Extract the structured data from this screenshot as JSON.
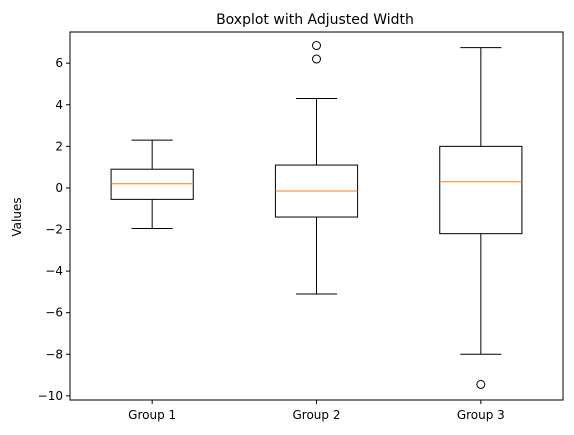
{
  "chart_data": {
    "type": "boxplot",
    "title": "Boxplot with Adjusted Width",
    "xlabel": "",
    "ylabel": "Values",
    "ylim": [
      -10.2,
      7.5
    ],
    "yticks": [
      6,
      4,
      2,
      0,
      -2,
      -4,
      -6,
      -8,
      -10
    ],
    "ytick_labels": [
      "6",
      "4",
      "2",
      "0",
      "−2",
      "−4",
      "−6",
      "−8",
      "−10"
    ],
    "grid": false,
    "categories": [
      "Group 1",
      "Group 2",
      "Group 3"
    ],
    "boxes": [
      {
        "whisker_low": -1.95,
        "q1": -0.55,
        "median": 0.2,
        "q3": 0.9,
        "whisker_high": 2.3,
        "outliers": []
      },
      {
        "whisker_low": -5.1,
        "q1": -1.4,
        "median": -0.15,
        "q3": 1.1,
        "whisker_high": 4.3,
        "outliers": [
          6.85,
          6.2
        ]
      },
      {
        "whisker_low": -8.0,
        "q1": -2.2,
        "median": 0.3,
        "q3": 2.0,
        "whisker_high": 6.75,
        "outliers": [
          -9.45
        ]
      }
    ],
    "colors": {
      "box": "#000000",
      "median": "#ff7f0e",
      "frame": "#000000"
    }
  }
}
